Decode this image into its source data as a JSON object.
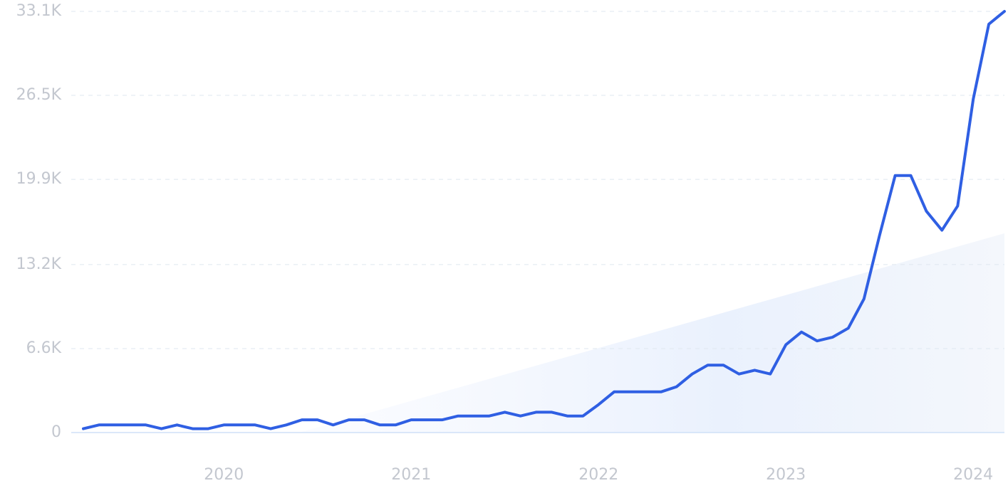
{
  "chart_data": {
    "type": "line",
    "categories": [
      null,
      null,
      null,
      null,
      null,
      null,
      null,
      null,
      null,
      "2020",
      null,
      null,
      null,
      null,
      null,
      null,
      null,
      null,
      null,
      null,
      null,
      "2021",
      null,
      null,
      null,
      null,
      null,
      null,
      null,
      null,
      null,
      null,
      null,
      "2022",
      null,
      null,
      null,
      null,
      null,
      null,
      null,
      null,
      null,
      null,
      null,
      "2023",
      null,
      null,
      null,
      null,
      null,
      null,
      null,
      null,
      null,
      null,
      null,
      "2024",
      null,
      null
    ],
    "series": [
      {
        "color": "#2f5fe3",
        "values": [
          300,
          600,
          600,
          600,
          600,
          300,
          600,
          300,
          300,
          600,
          600,
          600,
          300,
          600,
          1000,
          1000,
          600,
          1000,
          1000,
          600,
          600,
          1000,
          1000,
          1000,
          1300,
          1300,
          1300,
          1600,
          1300,
          1600,
          1600,
          1300,
          1300,
          2200,
          3200,
          3200,
          3200,
          3200,
          3600,
          4600,
          5300,
          5300,
          4600,
          4900,
          4600,
          6900,
          7900,
          7200,
          7500,
          8200,
          10500,
          15500,
          20200,
          20200,
          17400,
          15900,
          17800,
          26200,
          32100,
          33100
        ]
      }
    ],
    "ylim": [
      0,
      33100
    ],
    "yticks": [
      0,
      {
        "value": 6600,
        "label": "6.6K"
      },
      {
        "value": 13200,
        "label": "13.2K"
      },
      {
        "value": 19900,
        "label": "19.9K"
      },
      {
        "value": 26500,
        "label": "26.5K"
      },
      {
        "value": 33100,
        "label": "33.1K"
      }
    ],
    "grid": true
  }
}
